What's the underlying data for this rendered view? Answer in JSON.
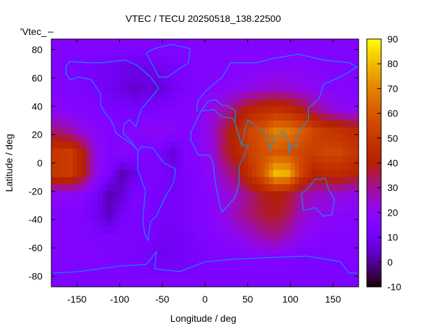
{
  "chart_data": {
    "type": "heatmap",
    "title": "VTEC / TECU 20250518_138.22500",
    "xlabel": "Longitude / deg",
    "ylabel": "Latitude / deg",
    "legend_key": "'Vtec_",
    "xlim": [
      -180,
      180
    ],
    "ylim": [
      -87.5,
      87.5
    ],
    "xticks": [
      -150,
      -100,
      -50,
      0,
      50,
      100,
      150
    ],
    "yticks": [
      -80,
      -60,
      -40,
      -20,
      0,
      20,
      40,
      60,
      80
    ],
    "colorbar": {
      "range": [
        -10,
        90
      ],
      "ticks": [
        -10,
        0,
        10,
        20,
        30,
        40,
        50,
        60,
        70,
        80,
        90
      ],
      "palette": "black-blue-purple-red-orange-yellow"
    },
    "grid": {
      "lon_centers": [
        -172.5,
        -157.5,
        -142.5,
        -127.5,
        -112.5,
        -97.5,
        -82.5,
        -67.5,
        -52.5,
        -37.5,
        -22.5,
        -7.5,
        7.5,
        22.5,
        37.5,
        52.5,
        67.5,
        82.5,
        97.5,
        112.5,
        127.5,
        142.5,
        157.5,
        172.5
      ],
      "lat_centers": [
        82.5,
        67.5,
        52.5,
        37.5,
        22.5,
        7.5,
        -7.5,
        -22.5,
        -37.5,
        -52.5,
        -67.5,
        -82.5
      ],
      "values": [
        [
          16,
          16,
          16,
          16,
          16,
          16,
          16,
          16,
          16,
          16,
          16,
          16,
          16,
          16,
          16,
          16,
          16,
          16,
          16,
          16,
          16,
          16,
          16,
          16
        ],
        [
          15,
          14,
          13,
          12,
          10,
          9,
          8,
          9,
          10,
          12,
          14,
          15,
          16,
          16,
          17,
          17,
          18,
          18,
          18,
          18,
          17,
          16,
          16,
          15
        ],
        [
          16,
          15,
          14,
          12,
          10,
          8,
          5,
          7,
          6,
          10,
          13,
          15,
          17,
          18,
          20,
          22,
          24,
          25,
          24,
          22,
          20,
          18,
          17,
          16
        ],
        [
          18,
          17,
          16,
          15,
          14,
          13,
          12,
          13,
          14,
          15,
          16,
          18,
          22,
          28,
          35,
          42,
          45,
          47,
          45,
          40,
          32,
          26,
          22,
          20
        ],
        [
          32,
          28,
          22,
          18,
          16,
          16,
          17,
          19,
          20,
          18,
          16,
          18,
          24,
          35,
          45,
          55,
          60,
          70,
          68,
          62,
          55,
          50,
          48,
          45
        ],
        [
          50,
          52,
          40,
          22,
          16,
          18,
          16,
          14,
          13,
          6,
          14,
          18,
          22,
          35,
          42,
          52,
          58,
          60,
          58,
          55,
          52,
          55,
          55,
          50
        ],
        [
          50,
          52,
          40,
          22,
          14,
          2,
          8,
          14,
          14,
          10,
          14,
          16,
          20,
          28,
          35,
          48,
          60,
          80,
          78,
          55,
          42,
          45,
          45,
          42
        ],
        [
          20,
          20,
          18,
          12,
          2,
          6,
          14,
          14,
          12,
          12,
          14,
          16,
          18,
          22,
          26,
          32,
          38,
          40,
          38,
          30,
          26,
          25,
          24,
          22
        ],
        [
          16,
          16,
          14,
          10,
          4,
          12,
          14,
          14,
          12,
          12,
          14,
          16,
          18,
          22,
          28,
          32,
          36,
          38,
          34,
          26,
          22,
          20,
          18,
          17
        ],
        [
          16,
          16,
          16,
          14,
          14,
          14,
          14,
          13,
          11,
          10,
          12,
          14,
          16,
          18,
          20,
          24,
          28,
          30,
          26,
          20,
          18,
          16,
          16,
          16
        ],
        [
          15,
          15,
          15,
          15,
          14,
          14,
          13,
          12,
          10,
          10,
          12,
          13,
          14,
          15,
          15,
          16,
          16,
          16,
          15,
          14,
          14,
          14,
          15,
          15
        ],
        [
          14,
          14,
          14,
          14,
          14,
          14,
          14,
          14,
          14,
          14,
          14,
          14,
          14,
          14,
          14,
          14,
          14,
          14,
          14,
          14,
          14,
          14,
          14,
          14
        ]
      ]
    }
  },
  "colors": {
    "coastline": "#00a0ff",
    "frame": "#000000"
  }
}
